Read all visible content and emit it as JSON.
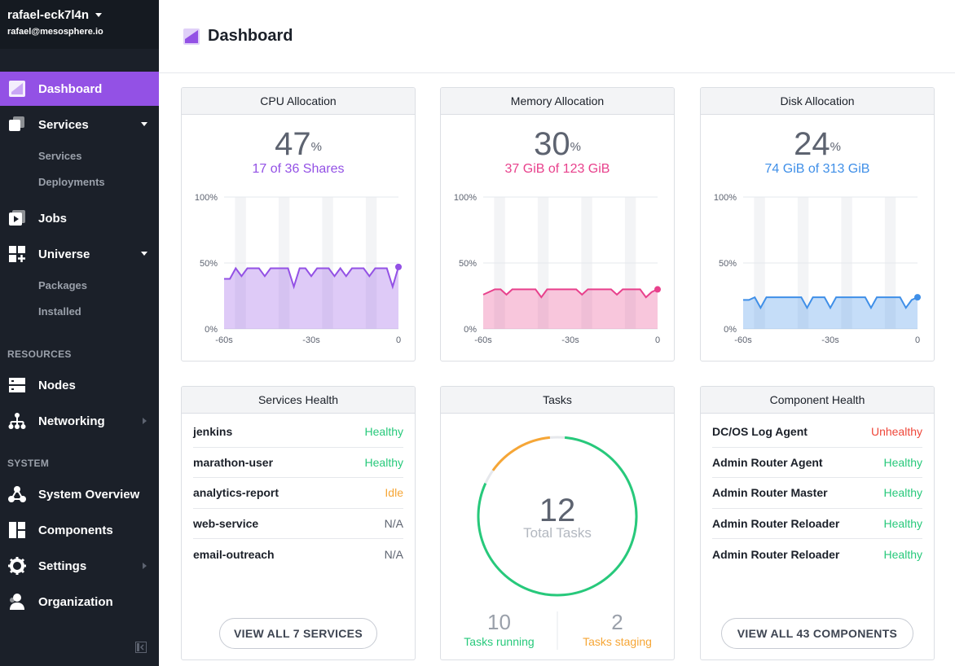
{
  "user": {
    "name": "rafael-eck7l4n",
    "email": "rafael@mesosphere.io"
  },
  "nav": {
    "dashboard": "Dashboard",
    "services": "Services",
    "services_sub": [
      "Services",
      "Deployments"
    ],
    "jobs": "Jobs",
    "universe": "Universe",
    "universe_sub": [
      "Packages",
      "Installed"
    ],
    "resources_label": "RESOURCES",
    "nodes": "Nodes",
    "networking": "Networking",
    "system_label": "SYSTEM",
    "system_overview": "System Overview",
    "components": "Components",
    "settings": "Settings",
    "organization": "Organization"
  },
  "page": {
    "title": "Dashboard"
  },
  "colors": {
    "cpu": "#9351e5",
    "memory": "#e8418c",
    "disk": "#3f8fe8",
    "healthy": "#27c97b",
    "idle": "#f6a636",
    "unhealthy": "#ef473a"
  },
  "cpu": {
    "title": "CPU Allocation",
    "percent": "47",
    "unit": "%",
    "subtitle": "17 of 36 Shares"
  },
  "memory": {
    "title": "Memory Allocation",
    "percent": "30",
    "unit": "%",
    "subtitle": "37 GiB of 123 GiB"
  },
  "disk": {
    "title": "Disk Allocation",
    "percent": "24",
    "unit": "%",
    "subtitle": "74 GiB of 313 GiB"
  },
  "axis": {
    "y_ticks": [
      "100%",
      "50%",
      "0%"
    ],
    "x_ticks": [
      "-60s",
      "-30s",
      "0"
    ]
  },
  "chart_data": [
    {
      "type": "area",
      "title": "CPU Allocation",
      "x": [
        -60,
        -58,
        -56,
        -54,
        -52,
        -50,
        -48,
        -46,
        -44,
        -42,
        -40,
        -38,
        -36,
        -34,
        -32,
        -30,
        -28,
        -26,
        -24,
        -22,
        -20,
        -18,
        -16,
        -14,
        -12,
        -10,
        -8,
        -6,
        -4,
        -2,
        0
      ],
      "values": [
        38,
        38,
        46,
        40,
        46,
        46,
        46,
        40,
        46,
        46,
        46,
        46,
        32,
        46,
        46,
        40,
        46,
        46,
        46,
        40,
        46,
        40,
        46,
        46,
        46,
        40,
        46,
        46,
        46,
        32,
        47
      ],
      "ylim": [
        0,
        100
      ]
    },
    {
      "type": "area",
      "title": "Memory Allocation",
      "x": [
        -60,
        -58,
        -56,
        -54,
        -52,
        -50,
        -48,
        -46,
        -44,
        -42,
        -40,
        -38,
        -36,
        -34,
        -32,
        -30,
        -28,
        -26,
        -24,
        -22,
        -20,
        -18,
        -16,
        -14,
        -12,
        -10,
        -8,
        -6,
        -4,
        -2,
        0
      ],
      "values": [
        26,
        28,
        30,
        30,
        26,
        30,
        30,
        30,
        30,
        30,
        24,
        30,
        30,
        30,
        30,
        30,
        30,
        26,
        30,
        30,
        30,
        30,
        30,
        26,
        30,
        30,
        30,
        30,
        24,
        28,
        30
      ],
      "ylim": [
        0,
        100
      ]
    },
    {
      "type": "area",
      "title": "Disk Allocation",
      "x": [
        -60,
        -58,
        -56,
        -54,
        -52,
        -50,
        -48,
        -46,
        -44,
        -42,
        -40,
        -38,
        -36,
        -34,
        -32,
        -30,
        -28,
        -26,
        -24,
        -22,
        -20,
        -18,
        -16,
        -14,
        -12,
        -10,
        -8,
        -6,
        -4,
        -2,
        0
      ],
      "values": [
        22,
        22,
        24,
        16,
        24,
        24,
        24,
        24,
        24,
        24,
        24,
        16,
        24,
        24,
        24,
        16,
        24,
        24,
        24,
        24,
        24,
        24,
        16,
        24,
        24,
        24,
        24,
        24,
        16,
        22,
        24
      ],
      "ylim": [
        0,
        100
      ]
    }
  ],
  "services_health": {
    "title": "Services Health",
    "rows": [
      {
        "name": "jenkins",
        "status": "Healthy",
        "kind": "healthy"
      },
      {
        "name": "marathon-user",
        "status": "Healthy",
        "kind": "healthy"
      },
      {
        "name": "analytics-report",
        "status": "Idle",
        "kind": "idle"
      },
      {
        "name": "web-service",
        "status": "N/A",
        "kind": "na"
      },
      {
        "name": "email-outreach",
        "status": "N/A",
        "kind": "na"
      }
    ],
    "button": "VIEW ALL 7 SERVICES"
  },
  "tasks": {
    "title": "Tasks",
    "total": "12",
    "total_label": "Total Tasks",
    "running": "10",
    "running_label": "Tasks running",
    "staging": "2",
    "staging_label": "Tasks staging",
    "running_count": 10,
    "staging_count": 2
  },
  "component_health": {
    "title": "Component Health",
    "rows": [
      {
        "name": "DC/OS Log Agent",
        "status": "Unhealthy",
        "kind": "unhealthy"
      },
      {
        "name": "Admin Router Agent",
        "status": "Healthy",
        "kind": "healthy"
      },
      {
        "name": "Admin Router Master",
        "status": "Healthy",
        "kind": "healthy"
      },
      {
        "name": "Admin Router Reloader",
        "status": "Healthy",
        "kind": "healthy"
      },
      {
        "name": "Admin Router Reloader",
        "status": "Healthy",
        "kind": "healthy"
      }
    ],
    "button": "VIEW ALL 43 COMPONENTS"
  }
}
